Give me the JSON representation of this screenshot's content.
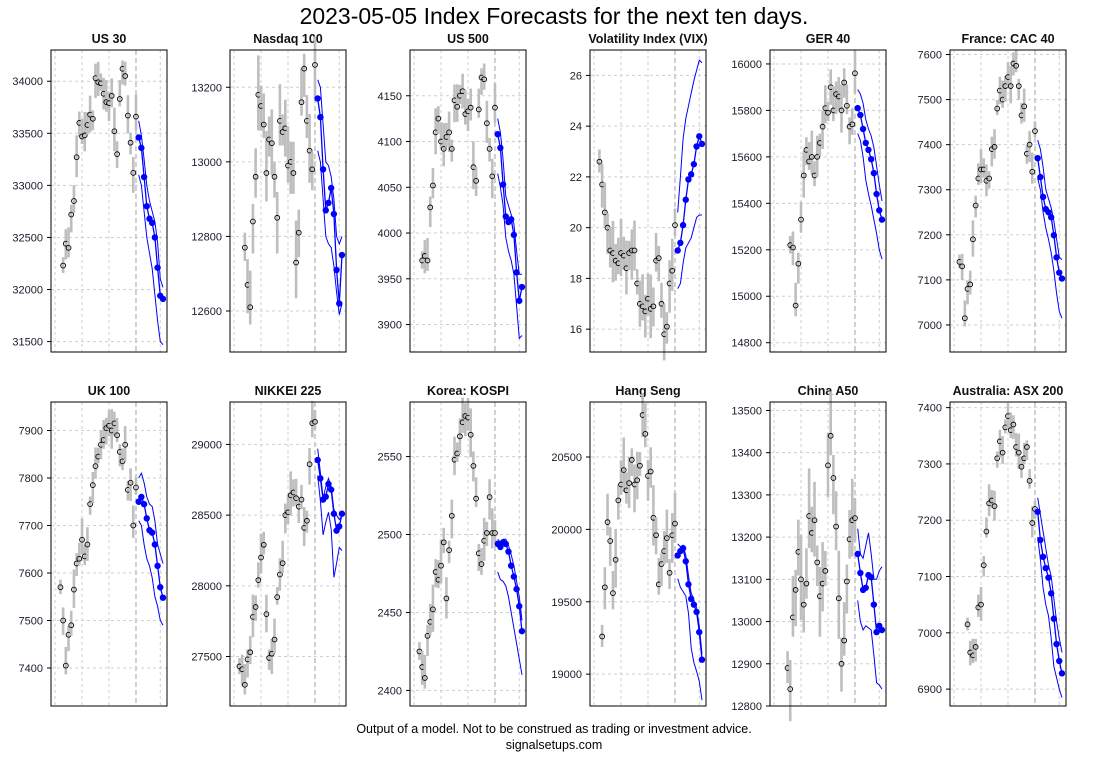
{
  "title": "2023-05-05 Index Forecasts for the next ten days.",
  "footer": {
    "disclaimer": "Output of a model. Not to be construed as trading or investment advice.",
    "site": "signalsetups.com"
  },
  "colors": {
    "history": "#bebebe",
    "forecast": "#0000ff",
    "grid": "#cfcfcf",
    "close_marker": "#000000"
  },
  "chart_data": [
    {
      "type": "line",
      "title": "US 30",
      "ylim": [
        31400,
        34300
      ],
      "yticks": [
        31500,
        32000,
        32500,
        33000,
        33500,
        34000
      ],
      "spread": 200,
      "hist_close": [
        32230,
        32440,
        32400,
        32720,
        32850,
        33270,
        33600,
        33470,
        33480,
        33580,
        33680,
        33640,
        34030,
        33990,
        33980,
        33880,
        33800,
        33790,
        33860,
        33520,
        33300,
        33830,
        34120,
        34050,
        33670,
        33410,
        33120,
        33660
      ],
      "forecast": [
        33460,
        33360,
        33080,
        32800,
        32680,
        32640,
        32500,
        32210,
        31940,
        31910
      ],
      "upper": [
        33620,
        33480,
        33250,
        33000,
        32850,
        32750,
        32650,
        32450,
        32100,
        32020
      ],
      "lower": [
        33100,
        33000,
        32750,
        32500,
        32350,
        32200,
        31950,
        31700,
        31500,
        31470
      ]
    },
    {
      "type": "line",
      "title": "Nasdaq 100",
      "ylim": [
        12490,
        13300
      ],
      "yticks": [
        12600,
        12800,
        13000,
        13200
      ],
      "spread": 100,
      "hist_close": [
        12770,
        12670,
        12610,
        12840,
        12960,
        13180,
        13150,
        13100,
        12970,
        13060,
        13050,
        12960,
        12850,
        13110,
        13080,
        13090,
        12990,
        13000,
        12970,
        12730,
        12810,
        13160,
        13250,
        13110,
        13030,
        12980,
        13260
      ],
      "forecast": [
        13170,
        13120,
        12980,
        12870,
        12890,
        12930,
        12860,
        12710,
        12620,
        12750
      ],
      "upper": [
        13220,
        13200,
        13100,
        13000,
        12990,
        12960,
        12900,
        12800,
        12780,
        12800
      ],
      "lower": [
        13030,
        13000,
        12900,
        12800,
        12780,
        12770,
        12720,
        12650,
        12590,
        12620
      ]
    },
    {
      "type": "line",
      "title": "US 500",
      "ylim": [
        3870,
        4200
      ],
      "yticks": [
        3900,
        3950,
        4000,
        4050,
        4100,
        4150
      ],
      "spread": 25,
      "hist_close": [
        3970,
        3975,
        3970,
        4028,
        4052,
        4110,
        4125,
        4100,
        4092,
        4105,
        4110,
        4092,
        4145,
        4138,
        4150,
        4155,
        4130,
        4133,
        4137,
        4072,
        4057,
        4135,
        4170,
        4168,
        4120,
        4092,
        4062,
        4137
      ],
      "forecast": [
        4108,
        4093,
        4053,
        4018,
        4012,
        4015,
        3998,
        3957,
        3926,
        3941
      ],
      "upper": [
        4125,
        4110,
        4080,
        4040,
        4030,
        4020,
        4010,
        3980,
        3955,
        3955
      ],
      "lower": [
        4065,
        4050,
        4030,
        3995,
        3980,
        3970,
        3955,
        3920,
        3885,
        3888
      ]
    },
    {
      "type": "line",
      "title": "Volatility Index (VIX)",
      "ylim": [
        15.1,
        27
      ],
      "yticks": [
        16,
        18,
        20,
        22,
        24,
        26
      ],
      "spread": 1.2,
      "hist_close": [
        22.6,
        21.7,
        20.6,
        20.0,
        19.1,
        19.0,
        18.7,
        18.6,
        19.0,
        18.9,
        18.4,
        19.0,
        19.1,
        19.1,
        17.8,
        17.0,
        16.9,
        16.7,
        17.2,
        16.8,
        16.9,
        18.7,
        18.8,
        17.0,
        15.8,
        16.1,
        17.8,
        18.3,
        20.1
      ],
      "forecast": [
        19.1,
        19.4,
        20.1,
        21.1,
        21.9,
        22.1,
        22.5,
        23.2,
        23.6,
        23.3
      ],
      "upper": [
        20.6,
        22.0,
        23.5,
        24.3,
        24.8,
        25.3,
        25.8,
        26.2,
        26.6,
        26.5
      ],
      "lower": [
        17.6,
        17.8,
        18.6,
        19.2,
        19.4,
        19.6,
        20.0,
        20.4,
        20.5,
        20.5
      ]
    },
    {
      "type": "line",
      "title": "GER 40",
      "ylim": [
        14760,
        16060
      ],
      "yticks": [
        14800,
        15000,
        15200,
        15400,
        15600,
        15800,
        16000
      ],
      "spread": 100,
      "hist_close": [
        15220,
        15210,
        14960,
        15140,
        15330,
        15520,
        15630,
        15580,
        15600,
        15520,
        15600,
        15660,
        15730,
        15810,
        15790,
        15900,
        15800,
        15870,
        15860,
        15800,
        15920,
        15820,
        15730,
        15740,
        15960
      ],
      "forecast": [
        15810,
        15780,
        15720,
        15660,
        15630,
        15590,
        15530,
        15440,
        15370,
        15330
      ],
      "upper": [
        15890,
        15870,
        15830,
        15760,
        15720,
        15690,
        15640,
        15560,
        15480,
        15410
      ],
      "lower": [
        15700,
        15670,
        15600,
        15500,
        15440,
        15390,
        15330,
        15270,
        15200,
        15160
      ]
    },
    {
      "type": "line",
      "title": "France: CAC 40",
      "ylim": [
        6940,
        7610
      ],
      "yticks": [
        7000,
        7100,
        7200,
        7300,
        7400,
        7500,
        7600
      ],
      "spread": 40,
      "hist_close": [
        7140,
        7130,
        7015,
        7080,
        7090,
        7190,
        7265,
        7325,
        7345,
        7345,
        7320,
        7325,
        7390,
        7395,
        7480,
        7520,
        7500,
        7530,
        7550,
        7530,
        7580,
        7575,
        7530,
        7465,
        7485,
        7380,
        7400,
        7340,
        7430
      ],
      "forecast": [
        7370,
        7328,
        7284,
        7257,
        7250,
        7239,
        7199,
        7150,
        7116,
        7103
      ],
      "upper": [
        7410,
        7390,
        7350,
        7300,
        7280,
        7260,
        7230,
        7190,
        7150,
        7145
      ],
      "lower": [
        7325,
        7300,
        7250,
        7215,
        7190,
        7160,
        7120,
        7070,
        7030,
        7015
      ]
    },
    {
      "type": "line",
      "title": "UK 100",
      "ylim": [
        7320,
        7960
      ],
      "yticks": [
        7400,
        7500,
        7600,
        7700,
        7800,
        7900
      ],
      "spread": 40,
      "hist_close": [
        7570,
        7500,
        7405,
        7470,
        7490,
        7565,
        7620,
        7630,
        7670,
        7635,
        7660,
        7745,
        7785,
        7825,
        7845,
        7870,
        7880,
        7905,
        7910,
        7900,
        7915,
        7890,
        7855,
        7835,
        7870,
        7775,
        7790,
        7700,
        7780
      ],
      "forecast": [
        7750,
        7760,
        7745,
        7715,
        7690,
        7685,
        7660,
        7615,
        7570,
        7548
      ],
      "upper": [
        7800,
        7810,
        7790,
        7760,
        7745,
        7740,
        7710,
        7660,
        7640,
        7620
      ],
      "lower": [
        7710,
        7700,
        7660,
        7630,
        7615,
        7590,
        7550,
        7530,
        7500,
        7490
      ]
    },
    {
      "type": "line",
      "title": "NIKKEI 225",
      "ylim": [
        27150,
        29300
      ],
      "yticks": [
        27500,
        28000,
        28500,
        29000
      ],
      "spread": 150,
      "hist_close": [
        27430,
        27410,
        27300,
        27480,
        27530,
        27780,
        27850,
        28040,
        28200,
        28290,
        27800,
        27490,
        27520,
        27620,
        27920,
        28080,
        28160,
        28500,
        28520,
        28640,
        28660,
        28620,
        28560,
        28610,
        28410,
        28460,
        28860,
        29150,
        29160
      ],
      "forecast": [
        28890,
        28760,
        28610,
        28630,
        28720,
        28680,
        28510,
        28390,
        28420,
        28510
      ],
      "upper": [
        28970,
        28800,
        28620,
        28700,
        28760,
        28700,
        28540,
        28500,
        28470,
        28490
      ],
      "lower": [
        28780,
        28600,
        28360,
        28450,
        28520,
        28400,
        28060,
        28160,
        28270,
        28250
      ]
    },
    {
      "type": "line",
      "title": "Korea: KOSPI",
      "ylim": [
        2390,
        2585
      ],
      "yticks": [
        2400,
        2450,
        2500,
        2550
      ],
      "spread": 15,
      "hist_close": [
        2425,
        2415,
        2408,
        2435,
        2444,
        2452,
        2476,
        2471,
        2480,
        2495,
        2459,
        2490,
        2512,
        2548,
        2552,
        2563,
        2572,
        2576,
        2575,
        2564,
        2544,
        2523,
        2488,
        2481,
        2496,
        2501,
        2524,
        2501,
        2501
      ],
      "forecast": [
        2494,
        2492,
        2495,
        2494,
        2489,
        2480,
        2473,
        2465,
        2454,
        2438
      ],
      "upper": [
        2497,
        2495,
        2497,
        2497,
        2493,
        2487,
        2480,
        2470,
        2460,
        2445
      ],
      "lower": [
        2476,
        2471,
        2470,
        2467,
        2460,
        2450,
        2440,
        2430,
        2420,
        2410
      ]
    },
    {
      "type": "line",
      "title": "Hang Seng",
      "ylim": [
        18780,
        20880
      ],
      "yticks": [
        19000,
        19500,
        20000,
        20500
      ],
      "spread": 200,
      "hist_close": [
        19260,
        19600,
        20050,
        19920,
        19560,
        19790,
        20200,
        20310,
        20410,
        20270,
        20320,
        20480,
        20310,
        20340,
        20440,
        20790,
        20660,
        20370,
        20400,
        20080,
        19960,
        19620,
        19760,
        19850,
        19940,
        19700,
        19960,
        20040
      ],
      "forecast": [
        19820,
        19850,
        19870,
        19780,
        19620,
        19520,
        19480,
        19430,
        19290,
        19100
      ],
      "upper": [
        19900,
        19880,
        19890,
        19820,
        19680,
        19560,
        19510,
        19460,
        19330,
        19140
      ],
      "lower": [
        19660,
        19600,
        19570,
        19540,
        19420,
        19180,
        19080,
        19020,
        18950,
        18820
      ]
    },
    {
      "type": "line",
      "title": "China A50",
      "ylim": [
        12800,
        13520
      ],
      "yticks": [
        12800,
        12900,
        13000,
        13100,
        13200,
        13300,
        13400,
        13500
      ],
      "spread": 100,
      "hist_close": [
        12890,
        12840,
        13010,
        13075,
        13165,
        13100,
        13040,
        13090,
        13250,
        13210,
        13240,
        13140,
        13060,
        13090,
        13120,
        13370,
        13440,
        13340,
        13225,
        13055,
        12900,
        12955,
        13095,
        13195,
        13240,
        13245
      ],
      "forecast": [
        13160,
        13115,
        13075,
        13080,
        13110,
        13105,
        13040,
        12975,
        12990,
        12980
      ],
      "upper": [
        13220,
        13160,
        13150,
        13180,
        13210,
        13160,
        13100,
        13100,
        13120,
        13130
      ],
      "lower": [
        13050,
        13000,
        12980,
        12990,
        12985,
        12980,
        12920,
        12855,
        12850,
        12840
      ]
    },
    {
      "type": "line",
      "title": "Australia: ASX 200",
      "ylim": [
        6870,
        7410
      ],
      "yticks": [
        6900,
        7000,
        7100,
        7200,
        7300,
        7400
      ],
      "spread": 30,
      "hist_close": [
        7015,
        6965,
        6960,
        6975,
        7045,
        7050,
        7120,
        7180,
        7230,
        7235,
        7225,
        7310,
        7340,
        7320,
        7365,
        7385,
        7360,
        7370,
        7330,
        7320,
        7295,
        7310,
        7330,
        7270,
        7195,
        7220
      ],
      "forecast": [
        7215,
        7165,
        7135,
        7115,
        7098,
        7070,
        7025,
        6980,
        6950,
        6928
      ],
      "upper": [
        7240,
        7210,
        7180,
        7150,
        7120,
        7100,
        7060,
        7020,
        6990,
        6965
      ],
      "lower": [
        7170,
        7130,
        7080,
        7050,
        7030,
        6990,
        6940,
        6920,
        6900,
        6885
      ]
    }
  ]
}
